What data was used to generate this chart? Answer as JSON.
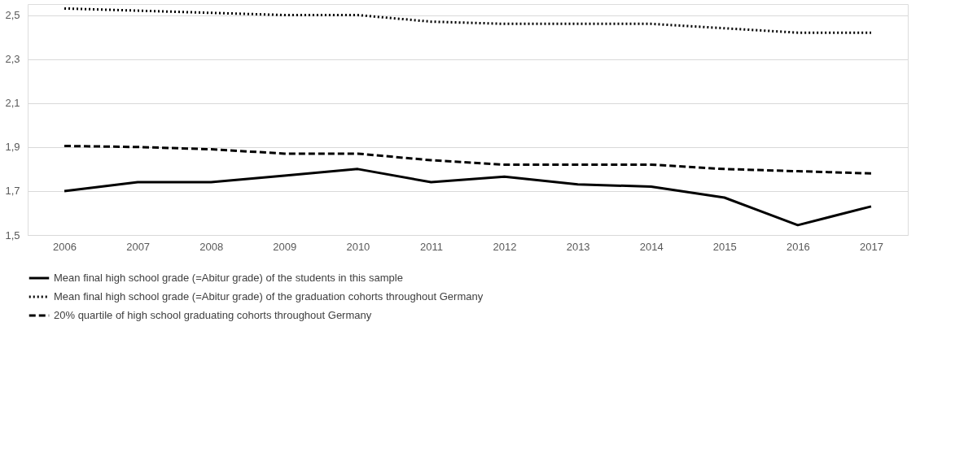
{
  "chart_data": {
    "type": "line",
    "categories": [
      "2006",
      "2007",
      "2008",
      "2009",
      "2010",
      "2011",
      "2012",
      "2013",
      "2014",
      "2015",
      "2016",
      "2017"
    ],
    "series": [
      {
        "name": "Mean final high school grade (=Abitur grade) of the students in this sample",
        "color": "#000000",
        "line_style": "solid",
        "values": [
          1.7,
          1.74,
          1.74,
          1.77,
          1.8,
          1.74,
          1.765,
          1.73,
          1.72,
          1.67,
          1.545,
          1.63
        ]
      },
      {
        "name": "Mean final high school grade (=Abitur grade) of the graduation cohorts throughout Germany",
        "color": "#000000",
        "line_style": "dotted",
        "values": [
          2.53,
          2.52,
          2.51,
          2.5,
          2.5,
          2.47,
          2.46,
          2.46,
          2.46,
          2.44,
          2.42,
          2.42
        ]
      },
      {
        "name": "20% quartile of high school graduating cohorts throughout Germany",
        "color": "#000000",
        "line_style": "dashed",
        "values": [
          1.905,
          1.9,
          1.89,
          1.87,
          1.87,
          1.84,
          1.82,
          1.82,
          1.82,
          1.8,
          1.79,
          1.78
        ]
      }
    ],
    "ylim": [
      1.5,
      2.55
    ],
    "yticks": [
      {
        "value": 1.5,
        "label": "1,5"
      },
      {
        "value": 1.7,
        "label": "1,7"
      },
      {
        "value": 1.9,
        "label": "1,9"
      },
      {
        "value": 2.1,
        "label": "2,1"
      },
      {
        "value": 2.3,
        "label": "2,3"
      },
      {
        "value": 2.5,
        "label": "2,5"
      }
    ],
    "grid": "y",
    "legend": "bottom"
  }
}
